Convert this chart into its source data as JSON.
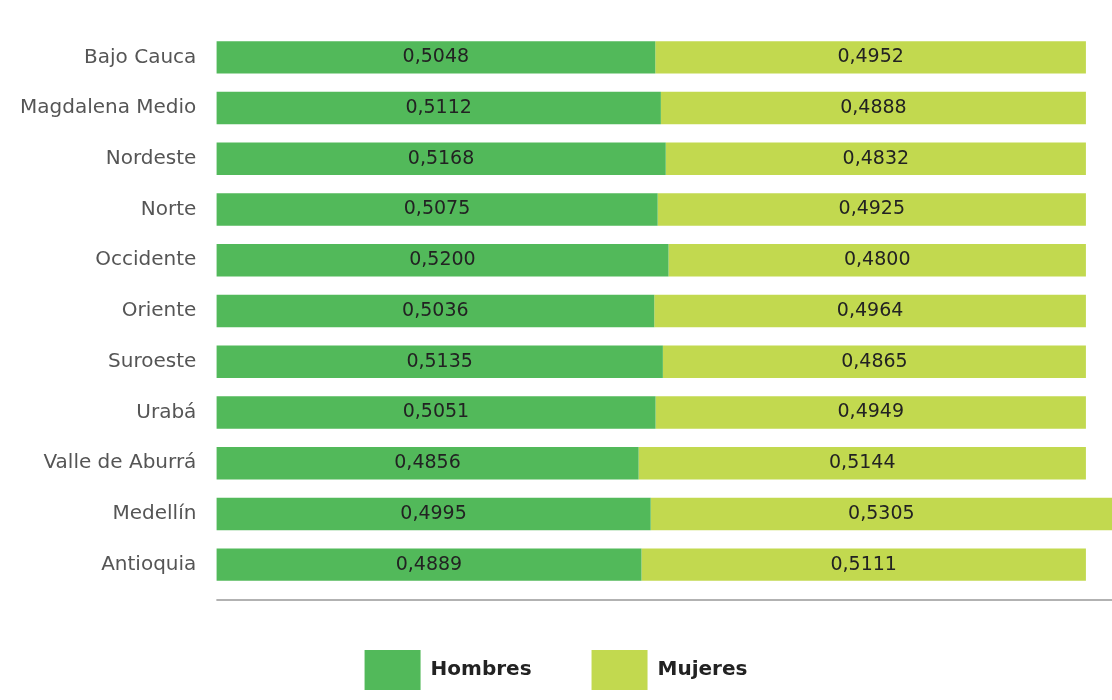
{
  "chart_data": {
    "type": "bar",
    "orientation": "horizontal",
    "stacked": true,
    "grid": false,
    "legend": "bottom",
    "tick_labels": "y",
    "categories": [
      "Bajo Cauca",
      "Magdalena Medio",
      "Nordeste",
      "Norte",
      "Occidente",
      "Oriente",
      "Suroeste",
      "Urabá",
      "Valle de Aburrá",
      "Medellín",
      "Antioquia"
    ],
    "series": [
      {
        "name": "Hombres",
        "color": "#52b95a",
        "values": [
          0.5048,
          0.5112,
          0.5168,
          0.5075,
          0.52,
          0.5036,
          0.5135,
          0.5051,
          0.4856,
          0.4995,
          0.4889
        ],
        "value_labels": [
          "0,5048",
          "0,5112",
          "0,5168",
          "0,5075",
          "0,5200",
          "0,5036",
          "0,5135",
          "0,5051",
          "0,4856",
          "0,4995",
          "0,4889"
        ]
      },
      {
        "name": "Mujeres",
        "color": "#c2d94f",
        "values": [
          0.4952,
          0.4888,
          0.4832,
          0.4925,
          0.48,
          0.4964,
          0.4865,
          0.4949,
          0.5144,
          0.5305,
          0.5111
        ],
        "value_labels": [
          "0,4952",
          "0,4888",
          "0,4832",
          "0,4925",
          "0,4800",
          "0,4964",
          "0,4865",
          "0,4949",
          "0,5144",
          "0,5305",
          "0,5111"
        ]
      }
    ]
  }
}
